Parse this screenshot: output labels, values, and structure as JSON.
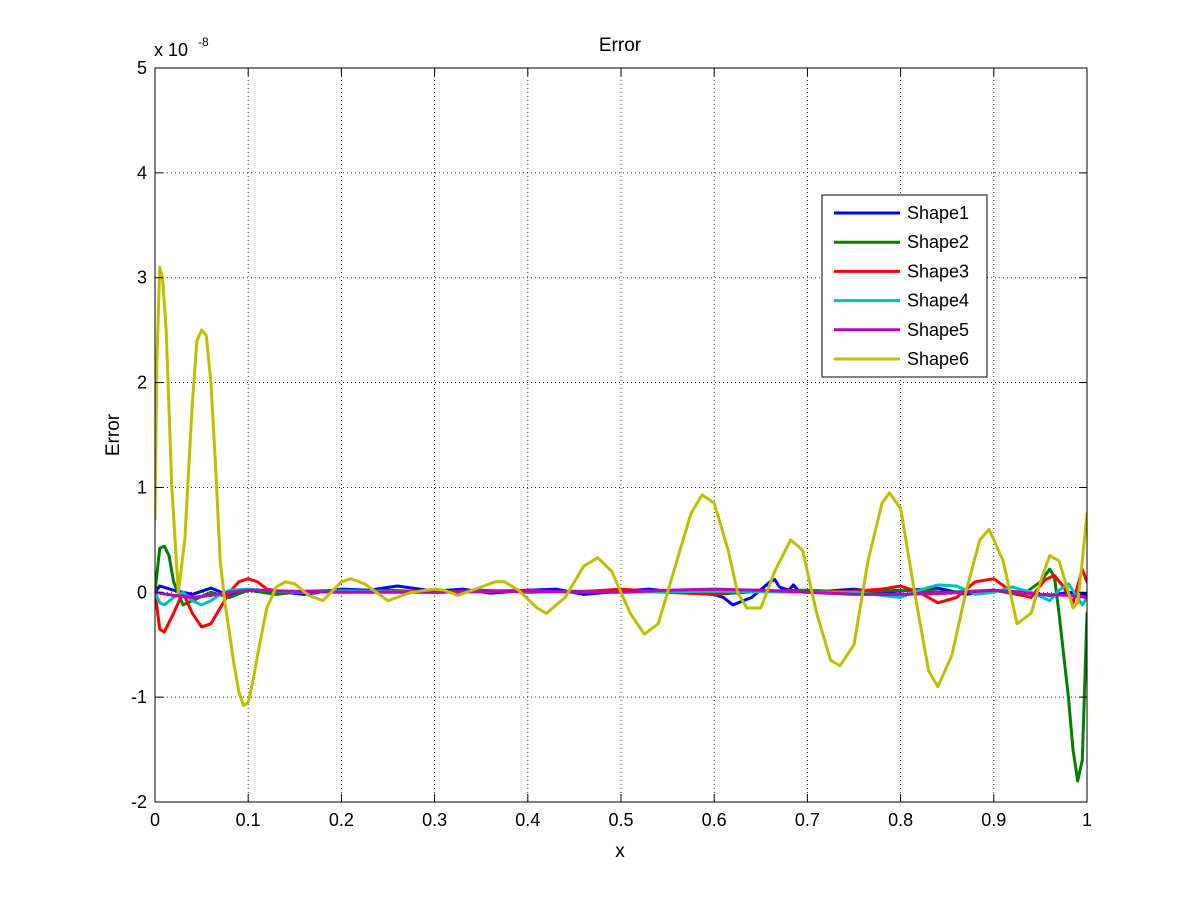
{
  "chart_data": {
    "type": "line",
    "title": "Error",
    "xlabel": "x",
    "ylabel": "Error",
    "y_exponent_label": "x 10",
    "y_exponent_power": "-8",
    "xlim": [
      0,
      1
    ],
    "ylim": [
      -2,
      5
    ],
    "x_ticks": [
      "0",
      "0.1",
      "0.2",
      "0.3",
      "0.4",
      "0.5",
      "0.6",
      "0.7",
      "0.8",
      "0.9",
      "1"
    ],
    "x_tick_values": [
      0,
      0.1,
      0.2,
      0.3,
      0.4,
      0.5,
      0.6,
      0.7,
      0.8,
      0.9,
      1
    ],
    "y_ticks": [
      "-2",
      "-1",
      "0",
      "1",
      "2",
      "3",
      "4",
      "5"
    ],
    "y_tick_values": [
      -2,
      -1,
      0,
      1,
      2,
      3,
      4,
      5
    ],
    "grid": true,
    "legend_position": "top-right",
    "series": [
      {
        "name": "Shape1",
        "color": "#0000ff",
        "x": [
          0,
          0.005,
          0.02,
          0.04,
          0.06,
          0.08,
          0.1,
          0.13,
          0.16,
          0.2,
          0.23,
          0.26,
          0.3,
          0.33,
          0.36,
          0.4,
          0.43,
          0.46,
          0.5,
          0.53,
          0.56,
          0.6,
          0.61,
          0.62,
          0.64,
          0.66,
          0.665,
          0.67,
          0.68,
          0.685,
          0.69,
          0.72,
          0.75,
          0.78,
          0.81,
          0.84,
          0.87,
          0.9,
          0.93,
          0.96,
          0.98,
          1.0
        ],
        "values": [
          0.0,
          0.06,
          0.02,
          -0.02,
          0.04,
          -0.03,
          0.02,
          0.01,
          -0.02,
          0.03,
          0.02,
          0.06,
          0.01,
          0.03,
          -0.01,
          0.02,
          0.03,
          -0.02,
          0.01,
          0.03,
          0.0,
          -0.02,
          -0.05,
          -0.12,
          -0.05,
          0.1,
          0.12,
          0.05,
          0.02,
          0.07,
          0.02,
          0.01,
          0.03,
          0.0,
          0.02,
          0.04,
          -0.02,
          0.02,
          0.0,
          -0.03,
          0.0,
          -0.02
        ]
      },
      {
        "name": "Shape2",
        "color": "#008000",
        "x": [
          0,
          0.005,
          0.01,
          0.015,
          0.02,
          0.03,
          0.04,
          0.06,
          0.08,
          0.1,
          0.13,
          0.16,
          0.2,
          0.25,
          0.3,
          0.35,
          0.4,
          0.45,
          0.5,
          0.55,
          0.6,
          0.65,
          0.7,
          0.75,
          0.8,
          0.85,
          0.9,
          0.93,
          0.95,
          0.96,
          0.965,
          0.97,
          0.975,
          0.98,
          0.985,
          0.99,
          0.995,
          1.0
        ],
        "values": [
          0.0,
          0.42,
          0.44,
          0.35,
          0.1,
          -0.12,
          -0.08,
          0.0,
          -0.05,
          0.02,
          -0.02,
          0.01,
          0.02,
          0.01,
          0.0,
          0.02,
          0.0,
          0.01,
          0.01,
          0.0,
          -0.02,
          0.01,
          0.02,
          0.0,
          0.02,
          0.0,
          0.02,
          -0.03,
          0.1,
          0.22,
          0.15,
          -0.2,
          -0.6,
          -1.0,
          -1.5,
          -1.8,
          -1.6,
          -0.2
        ]
      },
      {
        "name": "Shape3",
        "color": "#ff0000",
        "x": [
          0,
          0.005,
          0.01,
          0.02,
          0.03,
          0.04,
          0.05,
          0.06,
          0.07,
          0.08,
          0.09,
          0.1,
          0.11,
          0.12,
          0.14,
          0.16,
          0.2,
          0.25,
          0.3,
          0.35,
          0.4,
          0.45,
          0.5,
          0.55,
          0.6,
          0.65,
          0.7,
          0.75,
          0.78,
          0.8,
          0.82,
          0.84,
          0.86,
          0.88,
          0.9,
          0.92,
          0.94,
          0.955,
          0.965,
          0.975,
          0.985,
          0.995,
          1.0
        ],
        "values": [
          0.0,
          -0.35,
          -0.38,
          -0.2,
          0.0,
          -0.2,
          -0.33,
          -0.3,
          -0.15,
          0.0,
          0.1,
          0.13,
          0.1,
          0.03,
          0.0,
          0.01,
          0.0,
          0.02,
          0.0,
          0.01,
          0.02,
          0.0,
          0.03,
          0.0,
          -0.02,
          0.02,
          0.0,
          0.01,
          0.03,
          0.06,
          0.0,
          -0.1,
          -0.05,
          0.1,
          0.13,
          0.0,
          -0.05,
          0.12,
          0.16,
          0.05,
          -0.1,
          0.22,
          0.1
        ]
      },
      {
        "name": "Shape4",
        "color": "#00bfbf",
        "x": [
          0,
          0.005,
          0.01,
          0.02,
          0.03,
          0.04,
          0.05,
          0.06,
          0.07,
          0.08,
          0.1,
          0.13,
          0.16,
          0.2,
          0.3,
          0.4,
          0.5,
          0.6,
          0.7,
          0.75,
          0.8,
          0.82,
          0.84,
          0.86,
          0.88,
          0.9,
          0.92,
          0.94,
          0.96,
          0.97,
          0.98,
          0.99,
          0.995,
          1.0
        ],
        "values": [
          0.0,
          -0.1,
          -0.12,
          -0.05,
          0.0,
          -0.08,
          -0.12,
          -0.08,
          -0.02,
          0.02,
          0.03,
          0.01,
          0.0,
          0.01,
          0.0,
          0.01,
          0.0,
          0.01,
          0.0,
          0.0,
          -0.05,
          0.02,
          0.07,
          0.06,
          -0.02,
          0.0,
          0.05,
          0.0,
          -0.08,
          0.02,
          0.08,
          -0.05,
          -0.12,
          -0.05
        ]
      },
      {
        "name": "Shape5",
        "color": "#bf00bf",
        "x": [
          0,
          0.02,
          0.04,
          0.06,
          0.08,
          0.1,
          0.15,
          0.2,
          0.3,
          0.4,
          0.5,
          0.55,
          0.6,
          0.65,
          0.7,
          0.75,
          0.8,
          0.85,
          0.9,
          0.95,
          0.98,
          1.0
        ],
        "values": [
          0.0,
          -0.03,
          -0.05,
          -0.03,
          0.0,
          0.02,
          0.01,
          0.0,
          0.0,
          0.01,
          0.0,
          0.02,
          0.03,
          0.02,
          0.0,
          -0.02,
          -0.02,
          -0.01,
          0.02,
          -0.02,
          -0.03,
          -0.05
        ]
      },
      {
        "name": "Shape6",
        "color": "#bfbf00",
        "x": [
          0,
          0.002,
          0.005,
          0.008,
          0.012,
          0.018,
          0.025,
          0.032,
          0.04,
          0.045,
          0.05,
          0.055,
          0.06,
          0.065,
          0.07,
          0.075,
          0.08,
          0.085,
          0.09,
          0.095,
          0.1,
          0.105,
          0.11,
          0.12,
          0.13,
          0.14,
          0.15,
          0.165,
          0.18,
          0.2,
          0.21,
          0.225,
          0.25,
          0.275,
          0.3,
          0.31,
          0.325,
          0.35,
          0.365,
          0.375,
          0.39,
          0.41,
          0.42,
          0.44,
          0.46,
          0.475,
          0.49,
          0.51,
          0.525,
          0.54,
          0.56,
          0.575,
          0.587,
          0.6,
          0.615,
          0.625,
          0.635,
          0.65,
          0.665,
          0.682,
          0.695,
          0.71,
          0.725,
          0.735,
          0.75,
          0.765,
          0.78,
          0.788,
          0.8,
          0.815,
          0.83,
          0.84,
          0.855,
          0.87,
          0.885,
          0.895,
          0.91,
          0.925,
          0.94,
          0.95,
          0.96,
          0.97,
          0.98,
          0.985,
          0.99,
          0.995,
          1.0
        ],
        "values": [
          0.7,
          2.2,
          3.1,
          3.0,
          2.5,
          1.0,
          0.0,
          0.5,
          1.8,
          2.4,
          2.5,
          2.45,
          2.0,
          1.2,
          0.3,
          -0.1,
          -0.4,
          -0.7,
          -0.95,
          -1.08,
          -1.05,
          -0.85,
          -0.6,
          -0.15,
          0.05,
          0.1,
          0.08,
          -0.03,
          -0.08,
          0.1,
          0.13,
          0.08,
          -0.08,
          0.0,
          0.03,
          0.02,
          -0.03,
          0.05,
          0.1,
          0.1,
          0.02,
          -0.15,
          -0.2,
          -0.05,
          0.25,
          0.33,
          0.2,
          -0.2,
          -0.4,
          -0.3,
          0.3,
          0.75,
          0.93,
          0.85,
          0.4,
          0.0,
          -0.15,
          -0.15,
          0.2,
          0.5,
          0.4,
          -0.2,
          -0.65,
          -0.7,
          -0.5,
          0.3,
          0.85,
          0.95,
          0.8,
          0.0,
          -0.75,
          -0.9,
          -0.6,
          0.0,
          0.5,
          0.6,
          0.3,
          -0.3,
          -0.2,
          0.1,
          0.35,
          0.3,
          0.0,
          -0.15,
          -0.1,
          0.3,
          0.75
        ]
      }
    ]
  }
}
